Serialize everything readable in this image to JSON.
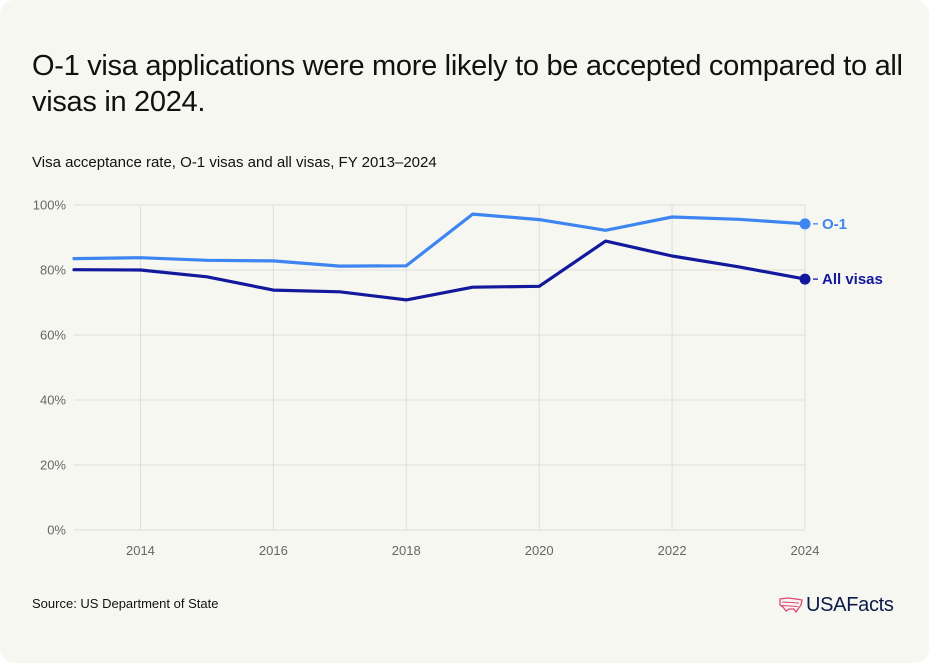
{
  "header": {
    "title": "O-1 visa applications were more likely to be accepted compared to all visas in 2024.",
    "subtitle": "Visa acceptance rate, O-1 visas and all visas, FY 2013–2024"
  },
  "footer": {
    "source": "Source: US Department of State",
    "logo_text": "USAFacts",
    "logo_icon": "us-map-icon"
  },
  "colors": {
    "o1": "#3d85f0",
    "all_visas": "#13199c",
    "grid": "#dcdcdc",
    "background": "#f7f7f2"
  },
  "chart_data": {
    "type": "line",
    "title": "O-1 visa applications were more likely to be accepted compared to all visas in 2024.",
    "subtitle": "Visa acceptance rate, O-1 visas and all visas, FY 2013–2024",
    "xlabel": "",
    "ylabel": "",
    "x": [
      2013,
      2014,
      2015,
      2016,
      2017,
      2018,
      2019,
      2020,
      2021,
      2022,
      2023,
      2024
    ],
    "xlim": [
      2013,
      2024
    ],
    "xticks": [
      2014,
      2016,
      2018,
      2020,
      2022,
      2024
    ],
    "ylim": [
      0,
      100
    ],
    "yticks": [
      0,
      20,
      40,
      60,
      80,
      100
    ],
    "ytick_labels": [
      "0%",
      "20%",
      "40%",
      "60%",
      "80%",
      "100%"
    ],
    "grid": true,
    "legend": "end-of-line labels",
    "series": [
      {
        "name": "O-1",
        "values": [
          83.5,
          83.8,
          83.0,
          82.8,
          81.2,
          81.3,
          97.2,
          95.5,
          92.2,
          96.3,
          95.6,
          94.2
        ]
      },
      {
        "name": "All visas",
        "values": [
          80.1,
          80.0,
          77.9,
          73.8,
          73.3,
          70.8,
          74.7,
          75.0,
          88.9,
          84.3,
          81.0,
          77.2
        ]
      }
    ]
  }
}
